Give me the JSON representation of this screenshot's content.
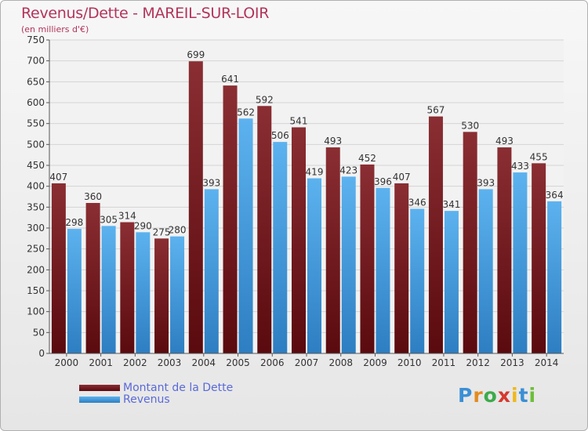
{
  "header": {
    "title": "Revenus/Dette - MAREIL-SUR-LOIR",
    "subtitle": "(en milliers d'€)"
  },
  "logo": {
    "letters": [
      "P",
      "r",
      "o",
      "x",
      "i",
      "t",
      "i"
    ],
    "colors": [
      "#3a8fd6",
      "#e38b1f",
      "#3cab4a",
      "#d6382f",
      "#f0b81d",
      "#3a8fd6",
      "#6cbf3a"
    ]
  },
  "colors": {
    "dette": "#7a2328",
    "revenus": "#4aa3e2",
    "title": "#b2345a",
    "legend_text": "#5a6ad8"
  },
  "chart_data": {
    "type": "bar",
    "title": "Revenus/Dette - MAREIL-SUR-LOIR",
    "ylabel": "(en milliers d'€)",
    "ylim": [
      0,
      750
    ],
    "yticks": [
      0,
      50,
      100,
      150,
      200,
      250,
      300,
      350,
      400,
      450,
      500,
      550,
      600,
      650,
      700,
      750
    ],
    "categories": [
      "2000",
      "2001",
      "2002",
      "2003",
      "2004",
      "2005",
      "2006",
      "2007",
      "2008",
      "2009",
      "2010",
      "2011",
      "2012",
      "2013",
      "2014"
    ],
    "series": [
      {
        "name": "Montant de la Dette",
        "values": [
          407,
          360,
          314,
          275,
          699,
          641,
          592,
          541,
          493,
          452,
          407,
          567,
          530,
          493,
          455
        ],
        "labels": [
          "407",
          "360",
          "314",
          "275",
          "699",
          "641",
          "592",
          "541",
          "493",
          "452",
          "407",
          "567",
          "530",
          "493",
          "455"
        ]
      },
      {
        "name": "Revenus",
        "values": [
          298,
          305,
          290,
          280,
          393,
          562,
          506,
          419,
          423,
          396,
          346,
          341,
          393,
          433,
          364
        ],
        "labels": [
          "298",
          "305",
          "290",
          "280",
          "393",
          "562",
          "506",
          "419",
          "423",
          "396",
          "346",
          "341",
          "393",
          "433",
          "364"
        ]
      }
    ],
    "grid": true,
    "legend": "bottom-left"
  }
}
